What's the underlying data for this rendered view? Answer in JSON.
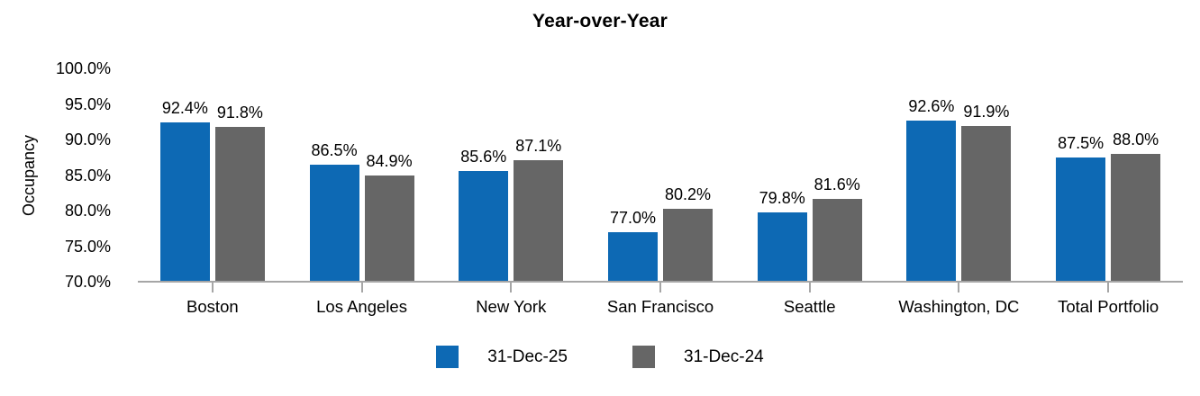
{
  "chart_data": {
    "type": "bar",
    "title": "Year-over-Year",
    "xlabel": "",
    "ylabel": "Occupancy",
    "ylim": [
      70,
      100
    ],
    "y_ticks": [
      70,
      75,
      80,
      85,
      90,
      95,
      100
    ],
    "y_tick_labels": [
      "70.0%",
      "75.0%",
      "80.0%",
      "85.0%",
      "90.0%",
      "95.0%",
      "100.0%"
    ],
    "grid": false,
    "legend_position": "bottom",
    "categories": [
      "Boston",
      "Los Angeles",
      "New York",
      "San Francisco",
      "Seattle",
      "Washington, DC",
      "Total Portfolio"
    ],
    "series": [
      {
        "name": "31-Dec-25",
        "color": "#0D69B4",
        "values": [
          92.4,
          86.5,
          85.6,
          77.0,
          79.8,
          92.6,
          87.5
        ],
        "labels": [
          "92.4%",
          "86.5%",
          "85.6%",
          "77.0%",
          "79.8%",
          "92.6%",
          "87.5%"
        ]
      },
      {
        "name": "31-Dec-24",
        "color": "#666666",
        "values": [
          91.8,
          84.9,
          87.1,
          80.2,
          81.6,
          91.9,
          88.0
        ],
        "labels": [
          "91.8%",
          "84.9%",
          "87.1%",
          "80.2%",
          "81.6%",
          "91.9%",
          "88.0%"
        ]
      }
    ],
    "axis_color": "#A6A6A6",
    "text_color": "#000000"
  }
}
